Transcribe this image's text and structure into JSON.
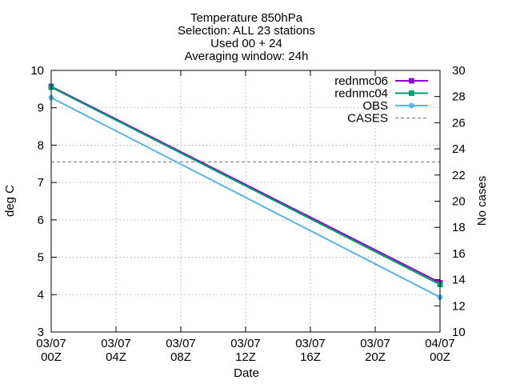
{
  "chart_data": {
    "type": "line",
    "title_lines": [
      "Temperature 850hPa",
      "Selection: ALL      23 stations",
      "Used 00 + 24",
      "Averaging window: 24h"
    ],
    "xlabel": "Date",
    "ylabel": "deg C",
    "y2label": "No cases",
    "ylim": [
      3,
      10
    ],
    "y2lim": [
      10,
      30
    ],
    "yticks": [
      "3",
      "4",
      "5",
      "6",
      "7",
      "8",
      "9",
      "10"
    ],
    "y2ticks": [
      "10",
      "12",
      "14",
      "16",
      "18",
      "20",
      "22",
      "24",
      "26",
      "28",
      "30"
    ],
    "xlim": [
      "03/07 00Z",
      "04/07 00Z"
    ],
    "xticks": [
      {
        "date": "03/07",
        "hour": "00Z"
      },
      {
        "date": "03/07",
        "hour": "04Z"
      },
      {
        "date": "03/07",
        "hour": "08Z"
      },
      {
        "date": "03/07",
        "hour": "12Z"
      },
      {
        "date": "03/07",
        "hour": "16Z"
      },
      {
        "date": "03/07",
        "hour": "20Z"
      },
      {
        "date": "04/07",
        "hour": "00Z"
      }
    ],
    "grid": true,
    "legend_position": "top-right",
    "x": [
      "03/07 00Z",
      "04/07 00Z"
    ],
    "series": [
      {
        "name": "rednmc06",
        "axis": "y",
        "color": "#9400d3",
        "marker": "square",
        "values": [
          9.57,
          4.32
        ]
      },
      {
        "name": "rednmc04",
        "axis": "y",
        "color": "#009e73",
        "marker": "square",
        "values": [
          9.55,
          4.27
        ]
      },
      {
        "name": "OBS",
        "axis": "y",
        "color": "#56b4e9",
        "marker": "circle",
        "values": [
          9.27,
          3.93
        ]
      },
      {
        "name": "CASES",
        "axis": "y2",
        "color": "#808080",
        "dashed": true,
        "values": [
          23,
          23
        ]
      }
    ]
  }
}
